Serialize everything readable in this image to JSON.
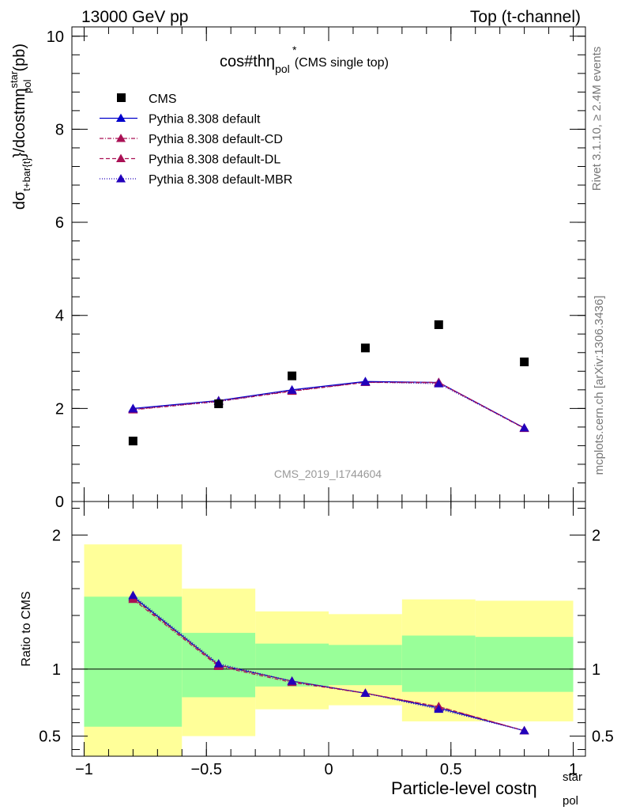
{
  "header": {
    "left": "13000 GeV pp",
    "right": "Top (t-channel)"
  },
  "side": {
    "rivet": "Rivet 3.1.10, ≥ 2.4M events",
    "mcplots": "mcplots.cern.ch [arXiv:1306.3436]"
  },
  "chart_data": [
    {
      "type": "scatter",
      "title_main": "cos#thη",
      "title_sup": "*",
      "title_sub": "pol",
      "title_note": "(CMS single top)",
      "ylabel_main": "dσ",
      "ylabel_sub1": "t+bar{t}",
      "ylabel_mid": "}/dcostmη",
      "ylabel_sup": "star",
      "ylabel_sub2": "pol",
      "ylabel_unit": "(pb)",
      "watermark": "CMS_2019_I1744604",
      "ylim": [
        0,
        10.2
      ],
      "yticks": [
        0,
        2,
        4,
        6,
        8,
        10
      ],
      "legend_position": "top-left",
      "data": {
        "name": "CMS",
        "x": [
          -0.8,
          -0.45,
          -0.15,
          0.15,
          0.45,
          0.8
        ],
        "y": [
          1.3,
          2.1,
          2.7,
          3.3,
          3.8,
          3.0
        ],
        "color": "#000000"
      },
      "series": [
        {
          "name": "Pythia 8.308 default",
          "x": [
            -0.8,
            -0.45,
            -0.15,
            0.15,
            0.45,
            0.8
          ],
          "y": [
            2.0,
            2.17,
            2.4,
            2.58,
            2.56,
            1.58
          ],
          "color": "#0000cc",
          "dash": ""
        },
        {
          "name": "Pythia 8.308 default-CD",
          "x": [
            -0.8,
            -0.45,
            -0.15,
            0.15,
            0.45,
            0.8
          ],
          "y": [
            1.97,
            2.15,
            2.37,
            2.56,
            2.55,
            1.57
          ],
          "color": "#aa1155",
          "dash": "5,2,1,2"
        },
        {
          "name": "Pythia 8.308 default-DL",
          "x": [
            -0.8,
            -0.45,
            -0.15,
            0.15,
            0.45,
            0.8
          ],
          "y": [
            1.98,
            2.16,
            2.38,
            2.56,
            2.56,
            1.58
          ],
          "color": "#aa1155",
          "dash": "5,3"
        },
        {
          "name": "Pythia 8.308 default-MBR",
          "x": [
            -0.8,
            -0.45,
            -0.15,
            0.15,
            0.45,
            0.8
          ],
          "y": [
            1.99,
            2.15,
            2.39,
            2.57,
            2.53,
            1.58
          ],
          "color": "#2200bb",
          "dash": "1,2"
        }
      ]
    },
    {
      "type": "line",
      "ylabel": "Ratio to CMS",
      "xlabel_main": "Particle-level costη",
      "xlabel_sup": "star",
      "xlabel_sub": "pol",
      "xlim": [
        -1.05,
        1.05
      ],
      "ylim": [
        0.35,
        2.25
      ],
      "yticks": [
        0.5,
        1,
        2
      ],
      "yticklabels": [
        "0.5",
        "1",
        "2"
      ],
      "xticks": [
        -1,
        -0.5,
        0,
        0.5,
        1
      ],
      "xticklabels": [
        "−1",
        "−0.5",
        "0",
        "0.5",
        "1"
      ],
      "bins": [
        {
          "lo": -1.0,
          "hi": -0.6,
          "yellow": [
            0.35,
            1.93
          ],
          "green": [
            0.57,
            1.54
          ]
        },
        {
          "lo": -0.6,
          "hi": -0.3,
          "yellow": [
            0.5,
            1.6
          ],
          "green": [
            0.79,
            1.27
          ]
        },
        {
          "lo": -0.3,
          "hi": 0.0,
          "yellow": [
            0.7,
            1.43
          ],
          "green": [
            0.87,
            1.19
          ]
        },
        {
          "lo": 0.0,
          "hi": 0.3,
          "yellow": [
            0.73,
            1.41
          ],
          "green": [
            0.88,
            1.18
          ]
        },
        {
          "lo": 0.3,
          "hi": 0.6,
          "yellow": [
            0.61,
            1.52
          ],
          "green": [
            0.83,
            1.25
          ]
        },
        {
          "lo": 0.6,
          "hi": 1.0,
          "yellow": [
            0.61,
            1.51
          ],
          "green": [
            0.83,
            1.24
          ]
        }
      ],
      "series": [
        {
          "name": "Pythia 8.308 default",
          "x": [
            -0.8,
            -0.45,
            -0.15,
            0.15,
            0.45,
            0.8
          ],
          "y": [
            1.54,
            1.03,
            0.91,
            0.82,
            0.71,
            0.54
          ],
          "color": "#0000cc",
          "dash": ""
        },
        {
          "name": "Pythia 8.308 default-CD",
          "x": [
            -0.8,
            -0.45,
            -0.15,
            0.15,
            0.45,
            0.8
          ],
          "y": [
            1.52,
            1.02,
            0.9,
            0.82,
            0.72,
            0.54
          ],
          "color": "#aa1155",
          "dash": "5,2,1,2"
        },
        {
          "name": "Pythia 8.308 default-DL",
          "x": [
            -0.8,
            -0.45,
            -0.15,
            0.15,
            0.45,
            0.8
          ],
          "y": [
            1.53,
            1.03,
            0.91,
            0.82,
            0.72,
            0.54
          ],
          "color": "#aa1155",
          "dash": "5,3"
        },
        {
          "name": "Pythia 8.308 default-MBR",
          "x": [
            -0.8,
            -0.45,
            -0.15,
            0.15,
            0.45,
            0.8
          ],
          "y": [
            1.55,
            1.04,
            0.91,
            0.82,
            0.7,
            0.54
          ],
          "color": "#2200bb",
          "dash": "1,2"
        }
      ],
      "colors": {
        "yellow": "#ffff99",
        "green": "#99ff99"
      }
    }
  ]
}
